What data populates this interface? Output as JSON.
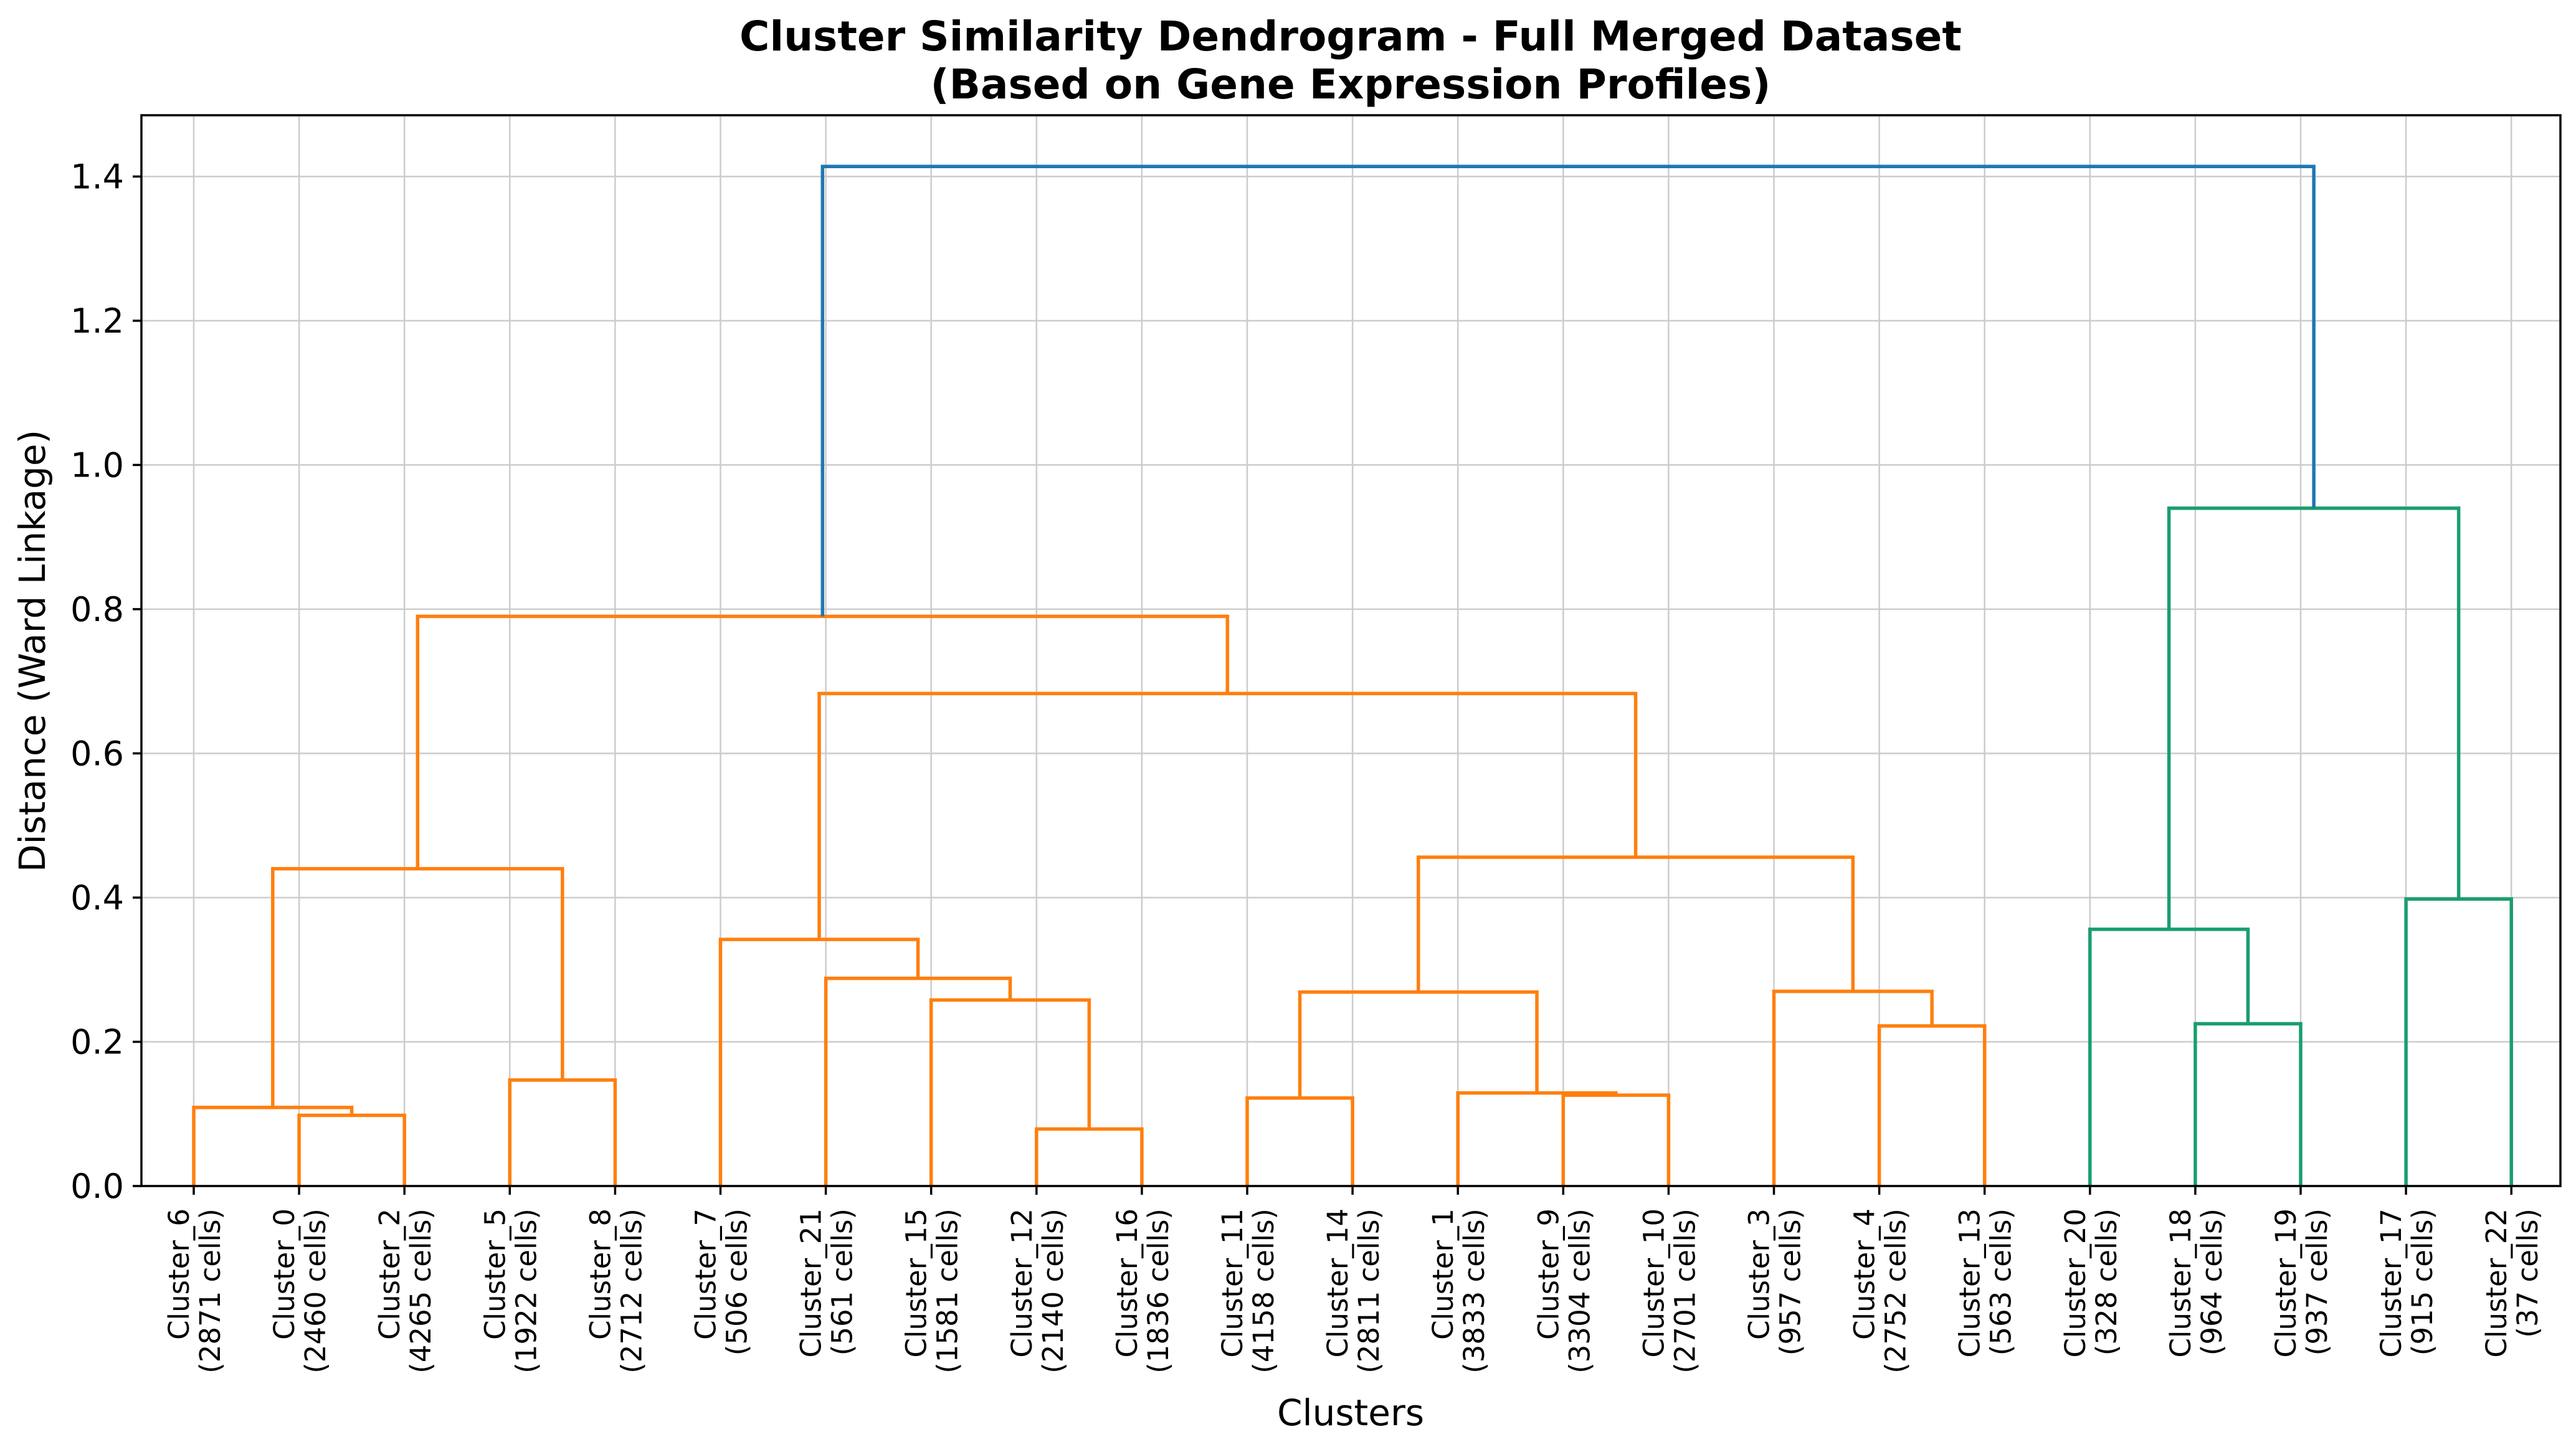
{
  "chart_data": {
    "type": "dendrogram",
    "title": "Cluster Similarity Dendrogram - Full Merged Dataset",
    "subtitle": "(Based on Gene Expression Profiles)",
    "xlabel": "Clusters",
    "ylabel": "Distance (Ward Linkage)",
    "ylim": [
      0,
      1.485
    ],
    "y_ticks": [
      0.0,
      0.2,
      0.4,
      0.6,
      0.8,
      1.0,
      1.2,
      1.4
    ],
    "y_tick_labels": [
      "0.0",
      "0.2",
      "0.4",
      "0.6",
      "0.8",
      "1.0",
      "1.2",
      "1.4"
    ],
    "grid": true,
    "colors": {
      "orange": "#ff7f0e",
      "green": "#1a9e6e",
      "blue": "#1f77b4"
    },
    "leaves": [
      {
        "name": "Cluster_6",
        "cells": "(2871 cells)"
      },
      {
        "name": "Cluster_0",
        "cells": "(2460 cells)"
      },
      {
        "name": "Cluster_2",
        "cells": "(4265 cells)"
      },
      {
        "name": "Cluster_5",
        "cells": "(1922 cells)"
      },
      {
        "name": "Cluster_8",
        "cells": "(2712 cells)"
      },
      {
        "name": "Cluster_7",
        "cells": "(506 cells)"
      },
      {
        "name": "Cluster_21",
        "cells": "(561 cells)"
      },
      {
        "name": "Cluster_15",
        "cells": "(1581 cells)"
      },
      {
        "name": "Cluster_12",
        "cells": "(2140 cells)"
      },
      {
        "name": "Cluster_16",
        "cells": "(1836 cells)"
      },
      {
        "name": "Cluster_11",
        "cells": "(4158 cells)"
      },
      {
        "name": "Cluster_14",
        "cells": "(2811 cells)"
      },
      {
        "name": "Cluster_1",
        "cells": "(3833 cells)"
      },
      {
        "name": "Cluster_9",
        "cells": "(3304 cells)"
      },
      {
        "name": "Cluster_10",
        "cells": "(2701 cells)"
      },
      {
        "name": "Cluster_3",
        "cells": "(957 cells)"
      },
      {
        "name": "Cluster_4",
        "cells": "(2752 cells)"
      },
      {
        "name": "Cluster_13",
        "cells": "(563 cells)"
      },
      {
        "name": "Cluster_20",
        "cells": "(328 cells)"
      },
      {
        "name": "Cluster_18",
        "cells": "(964 cells)"
      },
      {
        "name": "Cluster_19",
        "cells": "(937 cells)"
      },
      {
        "name": "Cluster_17",
        "cells": "(915 cells)"
      },
      {
        "name": "Cluster_22",
        "cells": "(37 cells)"
      }
    ],
    "merges": [
      {
        "id": "m1",
        "left": "L1",
        "right": "L2",
        "height": 0.098,
        "color": "orange"
      },
      {
        "id": "m2",
        "left": "L0",
        "right": "m1",
        "height": 0.109,
        "color": "orange"
      },
      {
        "id": "m3",
        "left": "L3",
        "right": "L4",
        "height": 0.147,
        "color": "orange"
      },
      {
        "id": "m4",
        "left": "m2",
        "right": "m3",
        "height": 0.44,
        "color": "orange"
      },
      {
        "id": "m5",
        "left": "L8",
        "right": "L9",
        "height": 0.079,
        "color": "orange"
      },
      {
        "id": "m6",
        "left": "L7",
        "right": "m5",
        "height": 0.258,
        "color": "orange"
      },
      {
        "id": "m7",
        "left": "L6",
        "right": "m6",
        "height": 0.288,
        "color": "orange"
      },
      {
        "id": "m8",
        "left": "L5",
        "right": "m7",
        "height": 0.342,
        "color": "orange"
      },
      {
        "id": "m9",
        "left": "L10",
        "right": "L11",
        "height": 0.122,
        "color": "orange"
      },
      {
        "id": "m10",
        "left": "L13",
        "right": "L14",
        "height": 0.126,
        "color": "orange"
      },
      {
        "id": "m11",
        "left": "L12",
        "right": "m10",
        "height": 0.129,
        "color": "orange"
      },
      {
        "id": "m12",
        "left": "m9",
        "right": "m11",
        "height": 0.269,
        "color": "orange"
      },
      {
        "id": "m13",
        "left": "L16",
        "right": "L17",
        "height": 0.222,
        "color": "orange"
      },
      {
        "id": "m14",
        "left": "L15",
        "right": "m13",
        "height": 0.27,
        "color": "orange"
      },
      {
        "id": "m15",
        "left": "m12",
        "right": "m14",
        "height": 0.456,
        "color": "orange"
      },
      {
        "id": "m16",
        "left": "m8",
        "right": "m15",
        "height": 0.683,
        "color": "orange"
      },
      {
        "id": "m17",
        "left": "m4",
        "right": "m16",
        "height": 0.79,
        "color": "orange"
      },
      {
        "id": "m18",
        "left": "L19",
        "right": "L20",
        "height": 0.225,
        "color": "green"
      },
      {
        "id": "m19",
        "left": "L18",
        "right": "m18",
        "height": 0.356,
        "color": "green"
      },
      {
        "id": "m20",
        "left": "L21",
        "right": "L22",
        "height": 0.398,
        "color": "green"
      },
      {
        "id": "m21",
        "left": "m19",
        "right": "m20",
        "height": 0.94,
        "color": "green"
      },
      {
        "id": "m22",
        "left": "m17",
        "right": "m21",
        "height": 1.414,
        "color": "blue"
      }
    ]
  }
}
